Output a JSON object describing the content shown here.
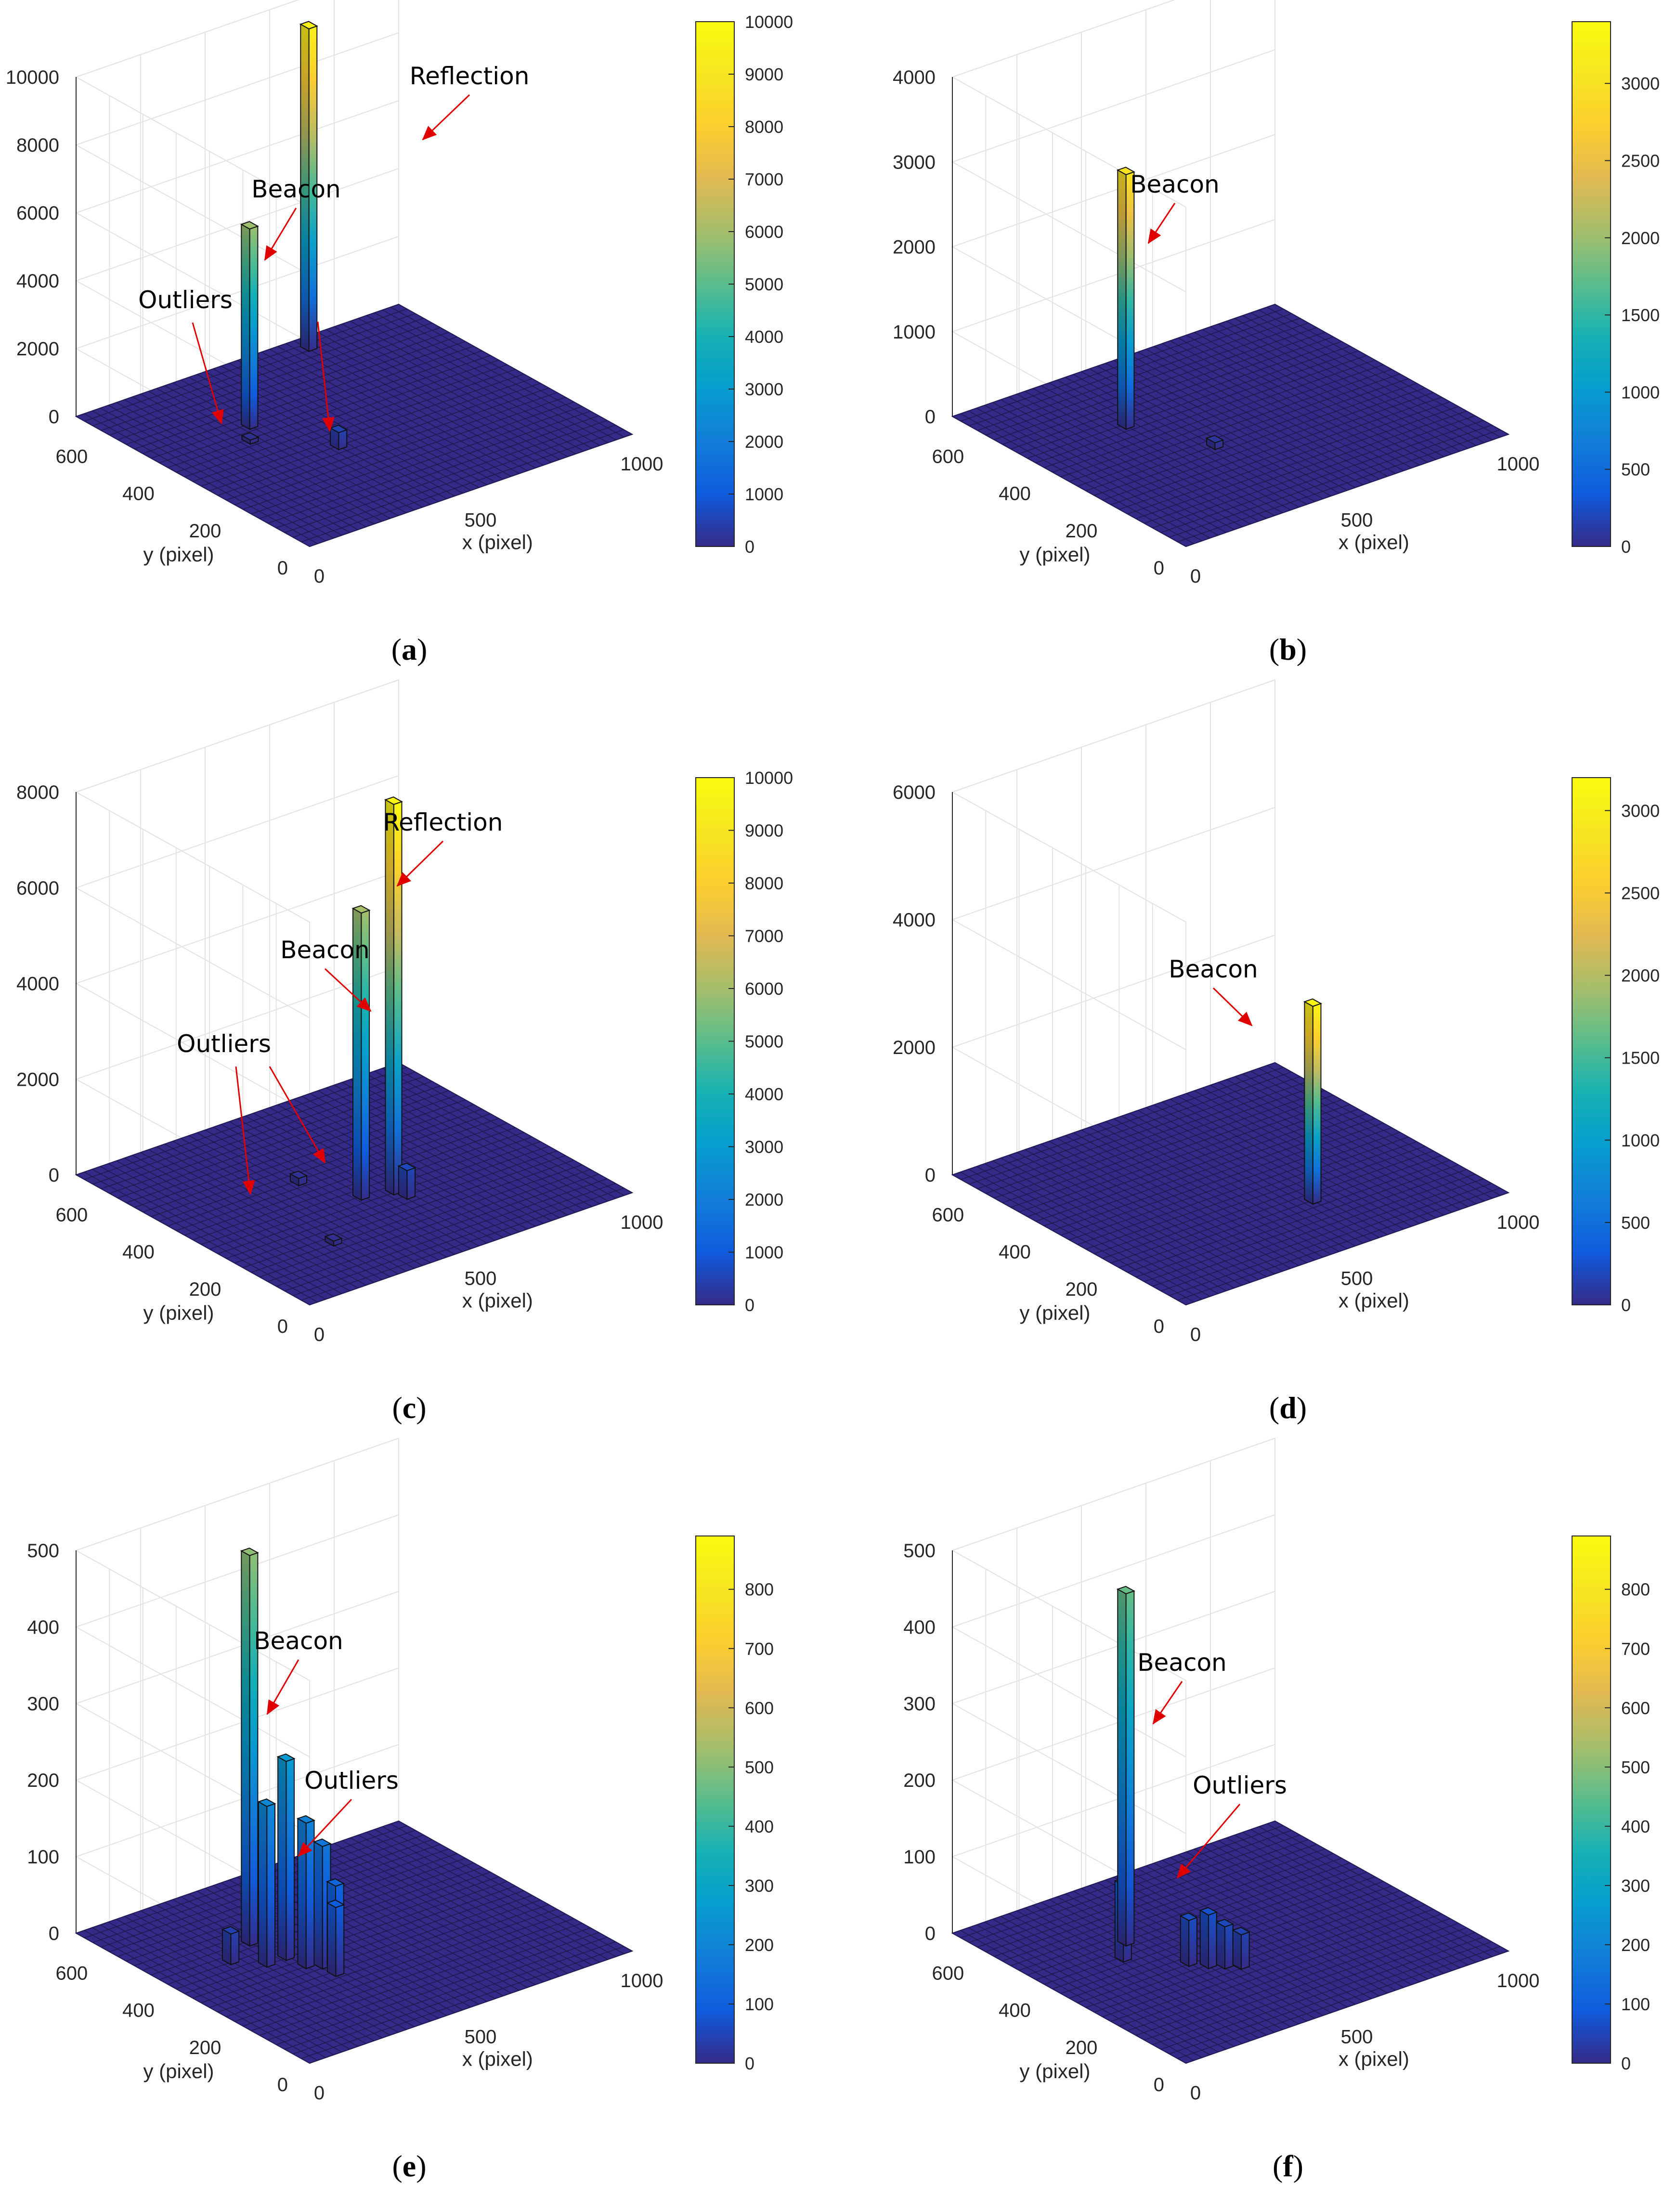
{
  "chart_data": [
    {
      "type": "bar3d",
      "caption": "a",
      "xlabel": "x (pixel)",
      "ylabel": "y (pixel)",
      "xlim": [
        0,
        1000
      ],
      "ylim": [
        0,
        700
      ],
      "zlim": [
        0,
        10000
      ],
      "x_ticks": [
        0,
        500,
        1000
      ],
      "y_ticks": [
        0,
        200,
        400,
        600
      ],
      "z_ticks": [
        0,
        2000,
        4000,
        6000,
        8000,
        10000
      ],
      "cb_max": 10000,
      "cb_ticks": [
        0,
        1000,
        2000,
        3000,
        4000,
        5000,
        6000,
        7000,
        8000,
        9000,
        10000
      ],
      "bars": [
        {
          "x": 300,
          "y": 470,
          "z": 5900
        },
        {
          "x": 680,
          "y": 660,
          "z": 9500
        },
        {
          "x": 400,
          "y": 300,
          "z": 500
        },
        {
          "x": 250,
          "y": 420,
          "z": 120
        }
      ],
      "annotations": [
        {
          "text": "Reflection",
          "bar": 1
        },
        {
          "text": "Beacon",
          "bar": 0
        },
        {
          "text": "Outliers",
          "points": [
            [
              250,
              420
            ],
            [
              400,
              300
            ]
          ]
        }
      ]
    },
    {
      "type": "bar3d",
      "caption": "b",
      "xlabel": "x (pixel)",
      "ylabel": "y (pixel)",
      "xlim": [
        0,
        1000
      ],
      "ylim": [
        0,
        700
      ],
      "zlim": [
        0,
        4000
      ],
      "x_ticks": [
        0,
        500,
        1000
      ],
      "y_ticks": [
        0,
        200,
        400,
        600
      ],
      "z_ticks": [
        0,
        1000,
        2000,
        3000,
        4000
      ],
      "cb_max": 3400,
      "cb_ticks": [
        0,
        500,
        1000,
        1500,
        2000,
        2500,
        3000
      ],
      "bars": [
        {
          "x": 300,
          "y": 470,
          "z": 3000
        },
        {
          "x": 400,
          "y": 300,
          "z": 80
        }
      ],
      "annotations": [
        {
          "text": "Beacon",
          "bar": 0
        }
      ]
    },
    {
      "type": "bar3d",
      "caption": "c",
      "xlabel": "x (pixel)",
      "ylabel": "y (pixel)",
      "xlim": [
        0,
        1000
      ],
      "ylim": [
        0,
        700
      ],
      "zlim": [
        0,
        8000
      ],
      "x_ticks": [
        0,
        500,
        1000
      ],
      "y_ticks": [
        0,
        200,
        400,
        600
      ],
      "z_ticks": [
        0,
        2000,
        4000,
        6000,
        8000
      ],
      "cb_max": 10000,
      "cb_ticks": [
        0,
        1000,
        2000,
        3000,
        4000,
        5000,
        6000,
        7000,
        8000,
        9000,
        10000
      ],
      "bars": [
        {
          "x": 470,
          "y": 300,
          "z": 6000
        },
        {
          "x": 550,
          "y": 280,
          "z": 9800
        },
        {
          "x": 560,
          "y": 250,
          "z": 600
        },
        {
          "x": 400,
          "y": 420,
          "z": 150
        },
        {
          "x": 260,
          "y": 180,
          "z": 100
        }
      ],
      "annotations": [
        {
          "text": "Reflection",
          "bar": 1
        },
        {
          "text": "Beacon",
          "bar": 0
        },
        {
          "text": "Outliers",
          "points": [
            [
              260,
              180
            ],
            [
              400,
              420
            ]
          ]
        }
      ]
    },
    {
      "type": "bar3d",
      "caption": "d",
      "xlabel": "x (pixel)",
      "ylabel": "y (pixel)",
      "xlim": [
        0,
        1000
      ],
      "ylim": [
        0,
        700
      ],
      "zlim": [
        0,
        6000
      ],
      "x_ticks": [
        0,
        500,
        1000
      ],
      "y_ticks": [
        0,
        200,
        400,
        600
      ],
      "z_ticks": [
        0,
        2000,
        4000,
        6000
      ],
      "cb_max": 3200,
      "cb_ticks": [
        0,
        500,
        1000,
        1500,
        2000,
        2500,
        3000
      ],
      "bars": [
        {
          "x": 600,
          "y": 200,
          "z": 3100
        }
      ],
      "annotations": [
        {
          "text": "Beacon",
          "bar": 0
        }
      ]
    },
    {
      "type": "bar3d",
      "caption": "e",
      "xlabel": "x (pixel)",
      "ylabel": "y (pixel)",
      "xlim": [
        0,
        1000
      ],
      "ylim": [
        0,
        700
      ],
      "zlim": [
        0,
        500
      ],
      "x_ticks": [
        0,
        500,
        1000
      ],
      "y_ticks": [
        0,
        200,
        400,
        600
      ],
      "z_ticks": [
        0,
        100,
        200,
        300,
        400,
        500
      ],
      "cb_max": 890,
      "cb_ticks": [
        0,
        100,
        200,
        300,
        400,
        500,
        600,
        700,
        800
      ],
      "bars": [
        {
          "x": 300,
          "y": 470,
          "z": 510
        },
        {
          "x": 260,
          "y": 380,
          "z": 210
        },
        {
          "x": 320,
          "y": 380,
          "z": 260
        },
        {
          "x": 330,
          "y": 330,
          "z": 190
        },
        {
          "x": 360,
          "y": 310,
          "z": 160
        },
        {
          "x": 380,
          "y": 290,
          "z": 110
        },
        {
          "x": 360,
          "y": 270,
          "z": 90
        },
        {
          "x": 200,
          "y": 430,
          "z": 40
        }
      ],
      "annotations": [
        {
          "text": "Beacon",
          "bar": 0
        },
        {
          "text": "Outliers",
          "bar": 4
        }
      ]
    },
    {
      "type": "bar3d",
      "caption": "f",
      "xlabel": "x (pixel)",
      "ylabel": "y (pixel)",
      "xlim": [
        0,
        1000
      ],
      "ylim": [
        0,
        700
      ],
      "zlim": [
        0,
        500
      ],
      "x_ticks": [
        0,
        500,
        1000
      ],
      "y_ticks": [
        0,
        200,
        400,
        600
      ],
      "z_ticks": [
        0,
        100,
        200,
        300,
        400,
        500
      ],
      "cb_max": 890,
      "cb_ticks": [
        0,
        100,
        200,
        300,
        400,
        500,
        600,
        700,
        800
      ],
      "bars": [
        {
          "x": 300,
          "y": 470,
          "z": 460
        },
        {
          "x": 240,
          "y": 420,
          "z": 100
        },
        {
          "x": 350,
          "y": 330,
          "z": 60
        },
        {
          "x": 380,
          "y": 300,
          "z": 70
        },
        {
          "x": 410,
          "y": 280,
          "z": 55
        },
        {
          "x": 440,
          "y": 260,
          "z": 45
        }
      ],
      "annotations": [
        {
          "text": "Beacon",
          "bar": 0
        },
        {
          "text": "Outliers",
          "bar": 2
        }
      ]
    }
  ]
}
